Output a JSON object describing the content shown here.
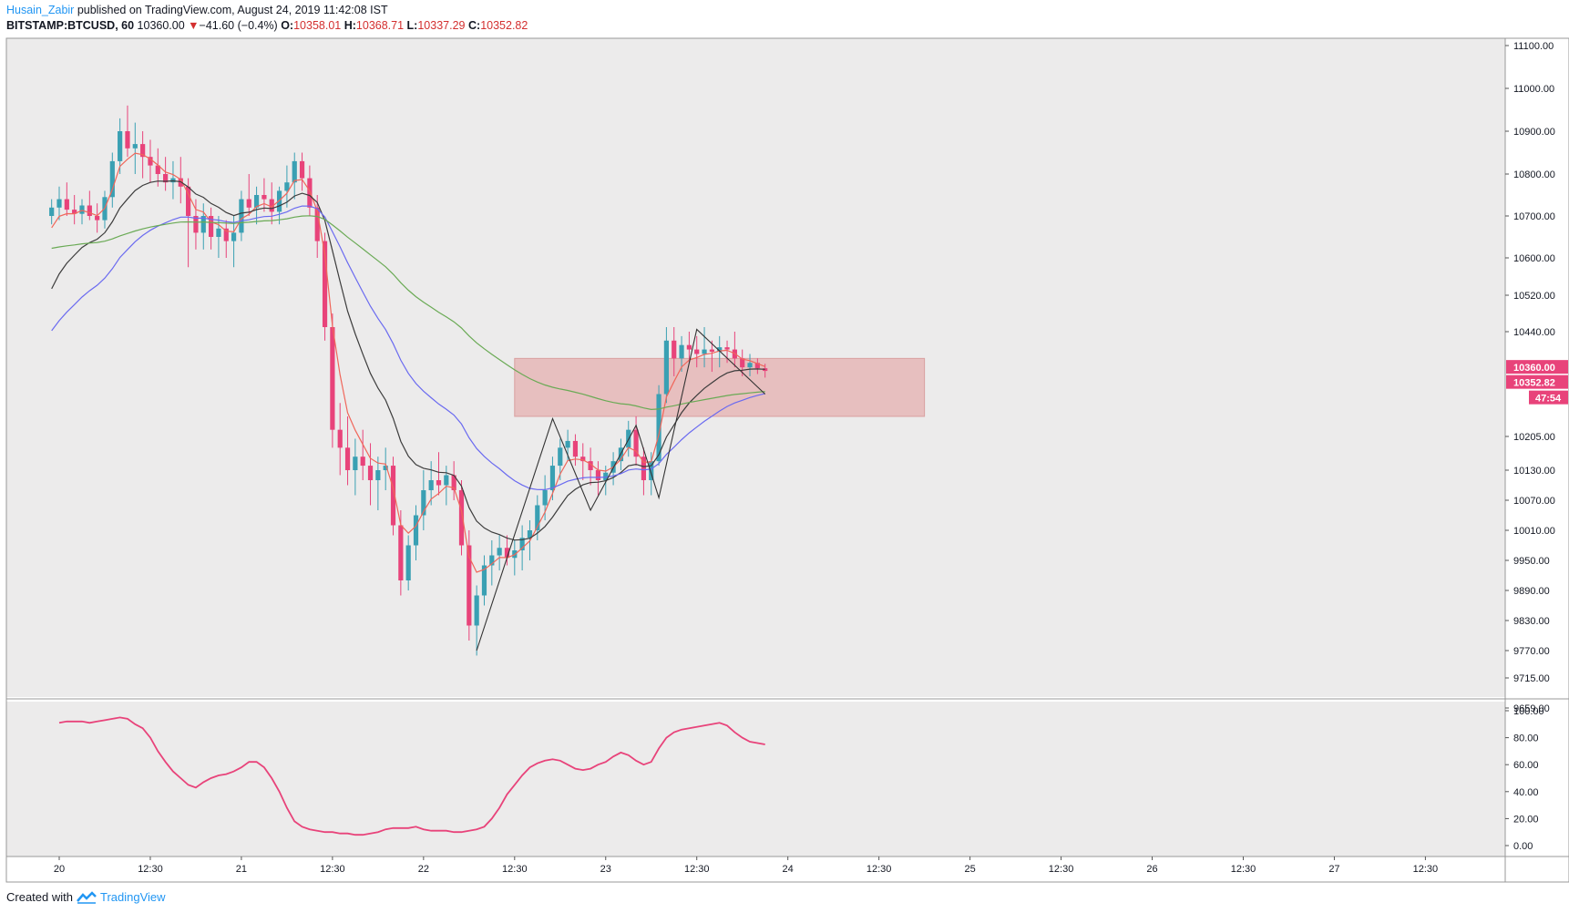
{
  "header": {
    "author": "Husain_Zabir",
    "published": "published on TradingView.com, August 24, 2019 11:42:08 IST",
    "symbol": "BITSTAMP:BTCUSD, 60",
    "last": "10360.00",
    "change": "−41.60 (−0.4%)",
    "open_label": "O:",
    "open": "10358.01",
    "high_label": "H:",
    "high": "10368.71",
    "low_label": "L:",
    "low": "10337.29",
    "close_label": "C:",
    "close": "10352.82"
  },
  "footer": {
    "created_with": "Created with",
    "brand": "TradingView"
  },
  "colors": {
    "up": "#3aa0b3",
    "down": "#e8437a",
    "ema_fast": "#f0665a",
    "ema_mid": "#3c3c3c",
    "ema_blue": "#6a6af0",
    "ema_green": "#6aaa55",
    "rsi": "#e8437a",
    "zone": "#e6b4b4",
    "pane_bg": "#ecebeb"
  },
  "chart_data": {
    "type": "candlestick",
    "symbol": "BITSTAMP:BTCUSD",
    "interval": "60",
    "price_axis": {
      "ticks": [
        11100,
        11000,
        10900,
        10800,
        10700,
        10600,
        10520,
        10440,
        10205,
        10130,
        10070,
        10010,
        9950,
        9890,
        9830,
        9770,
        9715,
        9659
      ],
      "tick_labels": [
        "11100.00",
        "11000.00",
        "10900.00",
        "10800.00",
        "10700.00",
        "10600.00",
        "10520.00",
        "10440.00",
        "10205.00",
        "10130.00",
        "10070.00",
        "10010.00",
        "9950.00",
        "9890.00",
        "9830.00",
        "9770.00",
        "9715.00",
        "9659.00"
      ],
      "ylim": [
        9659,
        11100
      ]
    },
    "time_axis": {
      "labels": [
        "20",
        "12:30",
        "21",
        "12:30",
        "22",
        "12:30",
        "23",
        "12:30",
        "24",
        "12:30",
        "25",
        "12:30",
        "26",
        "12:30",
        "27",
        "12:30"
      ],
      "first_hour": 0,
      "hours_per_label": 12
    },
    "price_labels": {
      "last": "10360.00",
      "close": "10352.82",
      "countdown": "47:54"
    },
    "zone": {
      "price_top": 10380,
      "price_bottom": 10250,
      "hour_start": 60,
      "hour_end": 114
    },
    "ohlc": [
      [
        10700,
        10740,
        10680,
        10720
      ],
      [
        10720,
        10770,
        10690,
        10740
      ],
      [
        10740,
        10780,
        10700,
        10715
      ],
      [
        10715,
        10750,
        10680,
        10705
      ],
      [
        10705,
        10740,
        10680,
        10725
      ],
      [
        10725,
        10760,
        10690,
        10700
      ],
      [
        10700,
        10730,
        10660,
        10690
      ],
      [
        10690,
        10760,
        10670,
        10745
      ],
      [
        10745,
        10850,
        10720,
        10830
      ],
      [
        10830,
        10930,
        10800,
        10900
      ],
      [
        10900,
        10960,
        10840,
        10860
      ],
      [
        10860,
        10920,
        10800,
        10870
      ],
      [
        10870,
        10900,
        10790,
        10840
      ],
      [
        10840,
        10880,
        10780,
        10820
      ],
      [
        10820,
        10860,
        10770,
        10800
      ],
      [
        10800,
        10840,
        10760,
        10780
      ],
      [
        10780,
        10830,
        10740,
        10790
      ],
      [
        10790,
        10840,
        10730,
        10770
      ],
      [
        10770,
        10790,
        10580,
        10700
      ],
      [
        10700,
        10740,
        10620,
        10660
      ],
      [
        10660,
        10730,
        10620,
        10700
      ],
      [
        10700,
        10720,
        10620,
        10650
      ],
      [
        10650,
        10700,
        10600,
        10670
      ],
      [
        10670,
        10690,
        10600,
        10640
      ],
      [
        10640,
        10700,
        10580,
        10660
      ],
      [
        10660,
        10760,
        10640,
        10740
      ],
      [
        10740,
        10800,
        10700,
        10720
      ],
      [
        10720,
        10770,
        10680,
        10750
      ],
      [
        10750,
        10790,
        10710,
        10740
      ],
      [
        10740,
        10780,
        10680,
        10710
      ],
      [
        10710,
        10770,
        10680,
        10760
      ],
      [
        10760,
        10820,
        10720,
        10780
      ],
      [
        10780,
        10850,
        10740,
        10830
      ],
      [
        10830,
        10850,
        10760,
        10790
      ],
      [
        10790,
        10820,
        10700,
        10720
      ],
      [
        10720,
        10750,
        10600,
        10640
      ],
      [
        10640,
        10660,
        10420,
        10450
      ],
      [
        10450,
        10480,
        10180,
        10220
      ],
      [
        10220,
        10280,
        10120,
        10180
      ],
      [
        10180,
        10250,
        10100,
        10130
      ],
      [
        10130,
        10200,
        10080,
        10160
      ],
      [
        10160,
        10220,
        10110,
        10140
      ],
      [
        10140,
        10190,
        10060,
        10110
      ],
      [
        10110,
        10160,
        10050,
        10130
      ],
      [
        10130,
        10180,
        10090,
        10140
      ],
      [
        10140,
        10160,
        10000,
        10020
      ],
      [
        10020,
        10050,
        9880,
        9910
      ],
      [
        9910,
        10000,
        9890,
        9980
      ],
      [
        9980,
        10060,
        9950,
        10040
      ],
      [
        10040,
        10130,
        10010,
        10090
      ],
      [
        10090,
        10150,
        10060,
        10110
      ],
      [
        10110,
        10170,
        10080,
        10100
      ],
      [
        10100,
        10140,
        10060,
        10120
      ],
      [
        10120,
        10150,
        10070,
        10090
      ],
      [
        10090,
        10110,
        9960,
        9980
      ],
      [
        9980,
        10010,
        9790,
        9820
      ],
      [
        9820,
        9900,
        9760,
        9880
      ],
      [
        9880,
        9960,
        9860,
        9940
      ],
      [
        9940,
        9990,
        9900,
        9960
      ],
      [
        9960,
        10000,
        9930,
        9975
      ],
      [
        9975,
        10000,
        9940,
        9955
      ],
      [
        9955,
        9990,
        9920,
        9970
      ],
      [
        9970,
        10020,
        9930,
        9995
      ],
      [
        9995,
        10030,
        9950,
        10010
      ],
      [
        10010,
        10080,
        9990,
        10060
      ],
      [
        10060,
        10120,
        10030,
        10090
      ],
      [
        10090,
        10160,
        10070,
        10140
      ],
      [
        10140,
        10200,
        10110,
        10180
      ],
      [
        10180,
        10220,
        10150,
        10195
      ],
      [
        10195,
        10210,
        10140,
        10160
      ],
      [
        10160,
        10190,
        10110,
        10150
      ],
      [
        10150,
        10180,
        10100,
        10130
      ],
      [
        10130,
        10150,
        10080,
        10110
      ],
      [
        10110,
        10140,
        10080,
        10125
      ],
      [
        10125,
        10170,
        10100,
        10150
      ],
      [
        10150,
        10200,
        10130,
        10180
      ],
      [
        10180,
        10240,
        10160,
        10220
      ],
      [
        10220,
        10250,
        10140,
        10160
      ],
      [
        10160,
        10180,
        10080,
        10110
      ],
      [
        10110,
        10170,
        10080,
        10150
      ],
      [
        10150,
        10320,
        10140,
        10300
      ],
      [
        10300,
        10450,
        10280,
        10420
      ],
      [
        10420,
        10450,
        10340,
        10380
      ],
      [
        10380,
        10430,
        10350,
        10410
      ],
      [
        10410,
        10440,
        10370,
        10400
      ],
      [
        10400,
        10430,
        10360,
        10390
      ],
      [
        10390,
        10450,
        10360,
        10400
      ],
      [
        10400,
        10420,
        10350,
        10395
      ],
      [
        10395,
        10430,
        10360,
        10405
      ],
      [
        10405,
        10420,
        10370,
        10400
      ],
      [
        10400,
        10440,
        10360,
        10380
      ],
      [
        10380,
        10400,
        10340,
        10360
      ],
      [
        10360,
        10390,
        10340,
        10370
      ],
      [
        10370,
        10380,
        10345,
        10358
      ],
      [
        10358,
        10368,
        10337,
        10352
      ]
    ],
    "candle_start_hour": -1,
    "rsi": {
      "label_ticks": [
        "100.00",
        "80.00",
        "60.00",
        "40.00",
        "20.00",
        "0.00"
      ],
      "ylim": [
        0,
        100
      ],
      "values": [
        91,
        92,
        92,
        92,
        91,
        92,
        93,
        94,
        95,
        94,
        90,
        87,
        80,
        70,
        62,
        55,
        50,
        45,
        43,
        47,
        50,
        52,
        53,
        55,
        58,
        62,
        62,
        58,
        50,
        40,
        28,
        18,
        14,
        12,
        11,
        10,
        10,
        9,
        9,
        8,
        8,
        9,
        10,
        12,
        13,
        13,
        13,
        14,
        12,
        11,
        11,
        11,
        10,
        10,
        11,
        12,
        14,
        20,
        28,
        38,
        45,
        52,
        58,
        61,
        63,
        64,
        63,
        60,
        57,
        56,
        57,
        60,
        62,
        66,
        69,
        67,
        63,
        60,
        62,
        72,
        80,
        84,
        86,
        87,
        88,
        89,
        90,
        91,
        89,
        84,
        80,
        77,
        76,
        75
      ],
      "start_hour": 0
    }
  }
}
